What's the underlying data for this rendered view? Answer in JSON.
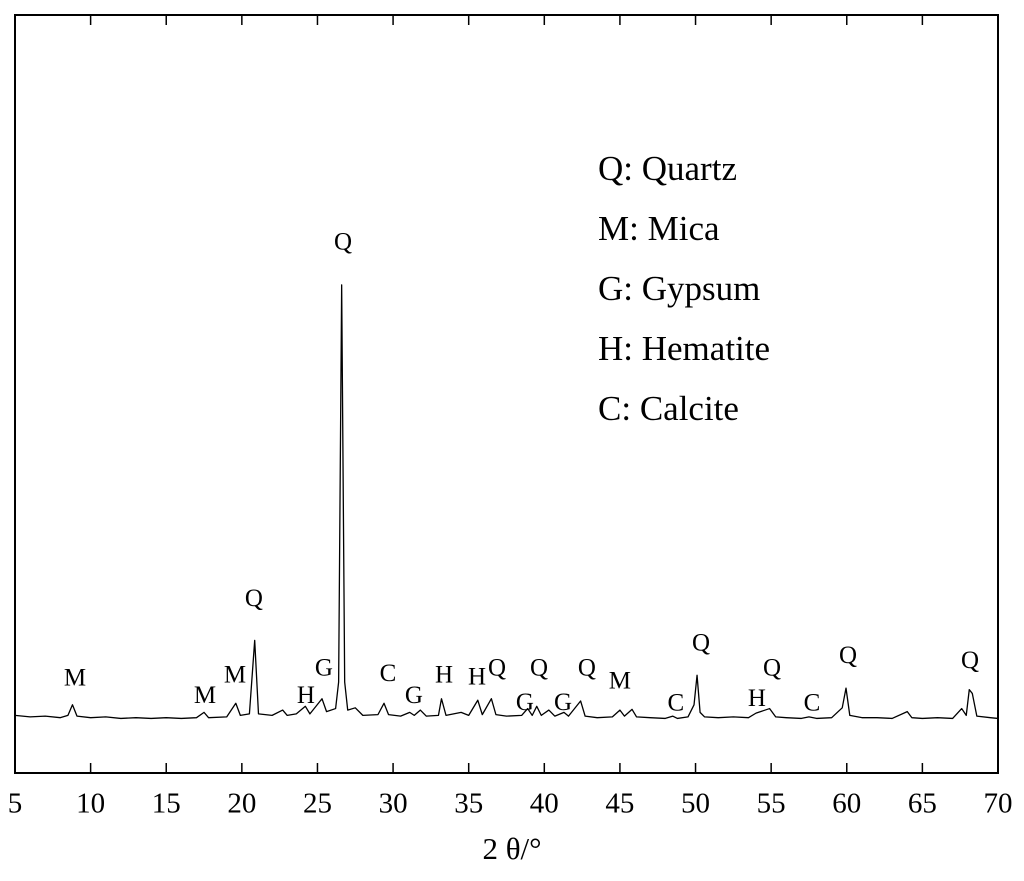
{
  "chart_data": {
    "type": "line",
    "x_label": "2 θ/°",
    "xlim": [
      5,
      70
    ],
    "xticks": [
      5,
      10,
      15,
      20,
      25,
      30,
      35,
      40,
      45,
      50,
      55,
      60,
      65,
      70
    ],
    "ylim": [
      0,
      100
    ],
    "series": [
      {
        "color": "#000000",
        "x": [
          5,
          6,
          7,
          8,
          8.5,
          8.8,
          9.1,
          10,
          11,
          12,
          13,
          14,
          15,
          16,
          17,
          17.5,
          17.8,
          19,
          19.6,
          19.9,
          20.5,
          20.85,
          21.1,
          22,
          22.7,
          23,
          23.6,
          24.2,
          24.5,
          25.3,
          25.6,
          26.2,
          26.4,
          26.6,
          26.8,
          27,
          27.5,
          28,
          29,
          29.4,
          29.7,
          30.5,
          31.1,
          31.4,
          31.8,
          32.2,
          33,
          33.2,
          33.5,
          34.5,
          35,
          35.6,
          35.9,
          36.5,
          36.8,
          37.5,
          38.5,
          38.9,
          39.2,
          39.5,
          39.8,
          40.3,
          40.7,
          41.3,
          41.6,
          42.4,
          42.7,
          43.5,
          44.5,
          45,
          45.3,
          45.8,
          46.1,
          47,
          48,
          48.5,
          48.8,
          49.5,
          49.9,
          50.1,
          50.3,
          50.6,
          51.5,
          52.5,
          53.5,
          54,
          54.9,
          55.3,
          56,
          57,
          57.5,
          58,
          59,
          59.7,
          59.95,
          60.2,
          61,
          62,
          63,
          64,
          64.3,
          65,
          66,
          67,
          67.6,
          67.9,
          68.1,
          68.3,
          68.6,
          69.5,
          70
        ],
        "values": [
          7.6,
          7.4,
          7.5,
          7.3,
          7.6,
          9.0,
          7.5,
          7.3,
          7.4,
          7.2,
          7.3,
          7.2,
          7.3,
          7.2,
          7.3,
          8.0,
          7.3,
          7.4,
          9.2,
          7.6,
          7.8,
          17.5,
          7.8,
          7.6,
          8.3,
          7.6,
          7.8,
          8.8,
          7.8,
          9.8,
          8.1,
          8.5,
          12,
          64.4,
          12,
          8.3,
          8.6,
          7.6,
          7.7,
          9.2,
          7.7,
          7.5,
          8.0,
          7.6,
          8.3,
          7.5,
          7.6,
          9.8,
          7.6,
          8.0,
          7.6,
          9.6,
          7.7,
          9.8,
          7.7,
          7.5,
          7.6,
          8.5,
          7.6,
          8.8,
          7.6,
          8.3,
          7.5,
          8.0,
          7.5,
          9.5,
          7.5,
          7.3,
          7.4,
          8.3,
          7.5,
          8.4,
          7.4,
          7.3,
          7.2,
          7.5,
          7.2,
          7.4,
          9,
          12.9,
          8,
          7.4,
          7.3,
          7.4,
          7.3,
          7.9,
          8.5,
          7.4,
          7.3,
          7.2,
          7.4,
          7.2,
          7.3,
          8.6,
          11.2,
          7.6,
          7.3,
          7.3,
          7.2,
          8.1,
          7.3,
          7.2,
          7.3,
          7.2,
          8.5,
          7.6,
          11,
          10.5,
          7.5,
          7.3,
          7.2
        ]
      }
    ],
    "annotations": [
      {
        "text": "M",
        "x": 8.97,
        "y": 12.3
      },
      {
        "text": "M",
        "x": 17.56,
        "y": 10.0
      },
      {
        "text": "M",
        "x": 19.55,
        "y": 12.7
      },
      {
        "text": "Q",
        "x": 20.8,
        "y": 22.8
      },
      {
        "text": "H",
        "x": 24.24,
        "y": 10.0
      },
      {
        "text": "G",
        "x": 25.43,
        "y": 13.6
      },
      {
        "text": "Q",
        "x": 26.69,
        "y": 69.8
      },
      {
        "text": "C",
        "x": 29.66,
        "y": 12.9
      },
      {
        "text": "G",
        "x": 31.38,
        "y": 10.0
      },
      {
        "text": "H",
        "x": 33.37,
        "y": 12.7
      },
      {
        "text": "H",
        "x": 35.55,
        "y": 12.4
      },
      {
        "text": "Q",
        "x": 36.87,
        "y": 13.6
      },
      {
        "text": "G",
        "x": 38.72,
        "y": 9.1
      },
      {
        "text": "Q",
        "x": 39.65,
        "y": 13.6
      },
      {
        "text": "G",
        "x": 41.24,
        "y": 9.1
      },
      {
        "text": "Q",
        "x": 42.82,
        "y": 13.6
      },
      {
        "text": "M",
        "x": 45.0,
        "y": 11.9
      },
      {
        "text": "C",
        "x": 48.7,
        "y": 9.0
      },
      {
        "text": "Q",
        "x": 50.36,
        "y": 16.9
      },
      {
        "text": "H",
        "x": 54.06,
        "y": 9.6
      },
      {
        "text": "Q",
        "x": 55.06,
        "y": 13.6
      },
      {
        "text": "C",
        "x": 57.7,
        "y": 9.0
      },
      {
        "text": "Q",
        "x": 60.08,
        "y": 15.3
      },
      {
        "text": "Q",
        "x": 68.15,
        "y": 14.6
      }
    ],
    "key": [
      "Q:  Quartz",
      "M: Mica",
      "G: Gypsum",
      "H: Hematite",
      "C: Calcite"
    ]
  }
}
